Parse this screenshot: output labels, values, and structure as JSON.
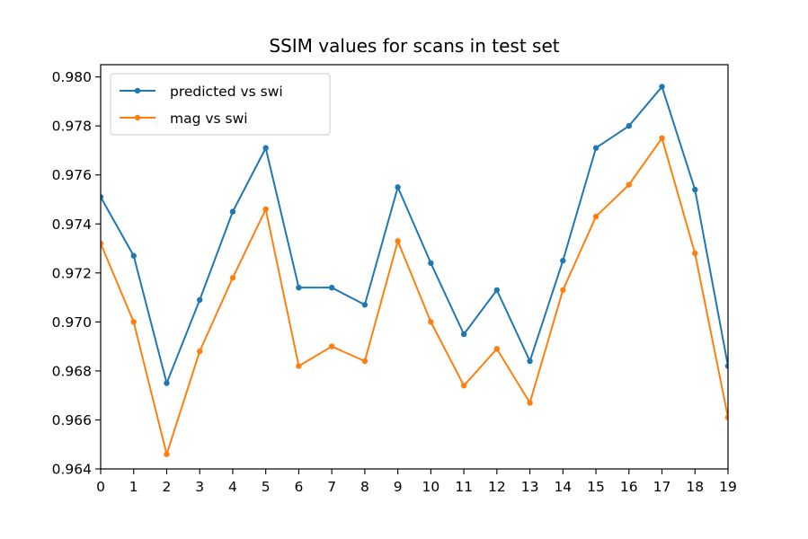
{
  "chart_data": {
    "type": "line",
    "title": "SSIM values for scans in test set",
    "xlabel": "",
    "ylabel": "",
    "x": [
      0,
      1,
      2,
      3,
      4,
      5,
      6,
      7,
      8,
      9,
      10,
      11,
      12,
      13,
      14,
      15,
      16,
      17,
      18,
      19
    ],
    "xlim": [
      0,
      19
    ],
    "ylim": [
      0.964,
      0.9805
    ],
    "x_ticks": [
      "0",
      "1",
      "2",
      "3",
      "4",
      "5",
      "6",
      "7",
      "8",
      "9",
      "10",
      "11",
      "12",
      "13",
      "14",
      "15",
      "16",
      "17",
      "18",
      "19"
    ],
    "y_ticks": [
      0.964,
      0.966,
      0.968,
      0.97,
      0.972,
      0.974,
      0.976,
      0.978,
      0.98
    ],
    "y_tick_labels": [
      "0.964",
      "0.966",
      "0.968",
      "0.970",
      "0.972",
      "0.974",
      "0.976",
      "0.978",
      "0.980"
    ],
    "grid": false,
    "legend": "top-left",
    "series": [
      {
        "name": "predicted vs swi",
        "color": "#1f77b4",
        "marker": "dot",
        "values": [
          0.9751,
          0.9727,
          0.9675,
          0.9709,
          0.9745,
          0.9771,
          0.9714,
          0.9714,
          0.9707,
          0.9755,
          0.9724,
          0.9695,
          0.9713,
          0.9684,
          0.9725,
          0.9771,
          0.978,
          0.9796,
          0.9754,
          0.9682
        ]
      },
      {
        "name": "mag vs swi",
        "color": "#ff7f0e",
        "marker": "dot",
        "values": [
          0.9732,
          0.97,
          0.9646,
          0.9688,
          0.9718,
          0.9746,
          0.9682,
          0.969,
          0.9684,
          0.9733,
          0.97,
          0.9674,
          0.9689,
          0.9667,
          0.9713,
          0.9743,
          0.9756,
          0.9775,
          0.9728,
          0.9661
        ]
      }
    ]
  }
}
